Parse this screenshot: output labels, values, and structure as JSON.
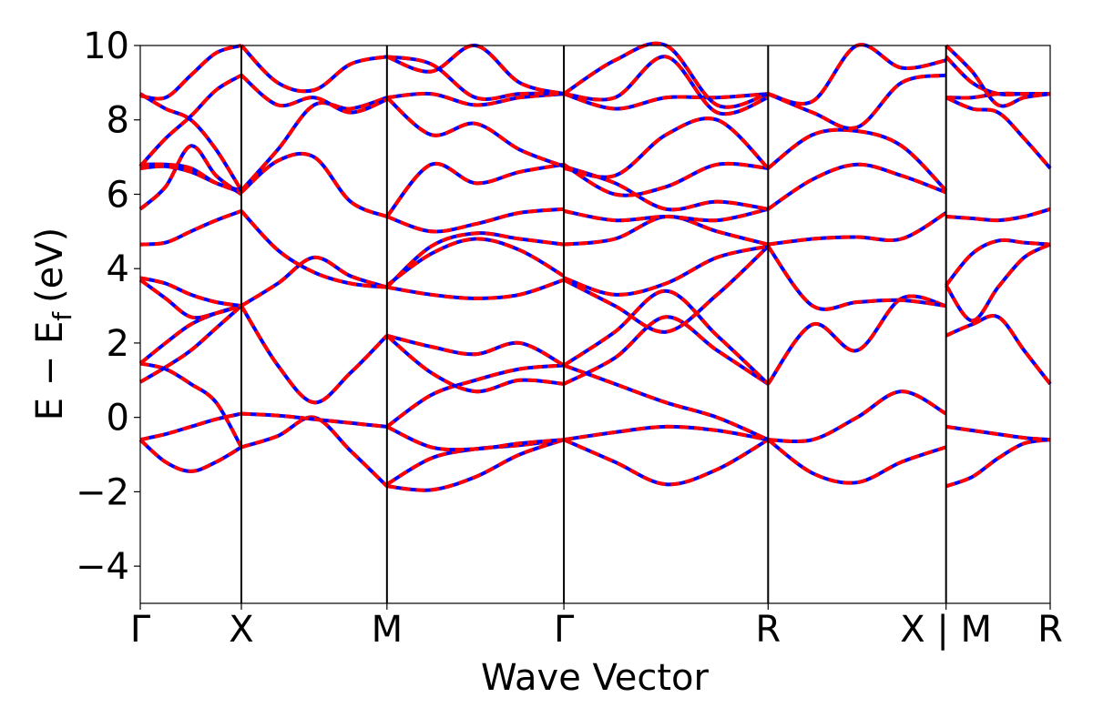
{
  "chart_data": {
    "type": "line",
    "xlabel": "Wave Vector",
    "ylabel_main": "E − E",
    "ylabel_sub": "f",
    "ylabel_unit": "(eV)",
    "ylim": [
      -5,
      10
    ],
    "yticks": [
      -4,
      -2,
      0,
      2,
      4,
      6,
      8,
      10
    ],
    "xlim": [
      0,
      9
    ],
    "kpoints": [
      {
        "label": "Γ",
        "x": 0.0
      },
      {
        "label": "X",
        "x": 1.0
      },
      {
        "label": "M",
        "x": 2.44
      },
      {
        "label": "Γ",
        "x": 4.19
      },
      {
        "label": "R",
        "x": 6.21
      },
      {
        "label": "X | M",
        "x": 7.97
      },
      {
        "label": "R",
        "x": 9.0
      }
    ],
    "colors": {
      "line_a": "#0000ff",
      "line_b": "#ff0000",
      "axis": "#000000"
    },
    "series": [
      {
        "segment": "Γ-X",
        "bands": [
          [
            -0.6,
            -1.2,
            -1.45,
            -1.2,
            -0.8
          ],
          [
            -0.6,
            -0.45,
            -0.25,
            -0.05,
            0.1
          ],
          [
            1.45,
            1.3,
            0.9,
            0.4,
            -0.8
          ],
          [
            0.95,
            1.35,
            1.8,
            2.4,
            3.0
          ],
          [
            1.45,
            2.0,
            2.5,
            2.8,
            3.0
          ],
          [
            3.7,
            3.2,
            2.7,
            2.8,
            3.0
          ],
          [
            3.75,
            3.6,
            3.3,
            3.1,
            3.0
          ],
          [
            4.65,
            4.7,
            5.0,
            5.3,
            5.55
          ],
          [
            5.6,
            6.2,
            7.3,
            6.5,
            6.0
          ],
          [
            6.7,
            6.75,
            6.6,
            6.3,
            6.05
          ],
          [
            6.8,
            6.8,
            6.7,
            6.3,
            6.1
          ],
          [
            6.75,
            7.5,
            8.1,
            8.8,
            9.2
          ],
          [
            8.7,
            8.3,
            8.0,
            7.2,
            6.1
          ],
          [
            8.65,
            8.6,
            9.2,
            9.8,
            10.0
          ]
        ]
      },
      {
        "segment": "X-M",
        "bands": [
          [
            -0.8,
            -0.5,
            0.0,
            -0.9,
            -1.85
          ],
          [
            0.1,
            0.05,
            -0.05,
            -0.15,
            -0.25
          ],
          [
            3.0,
            1.4,
            0.4,
            1.2,
            2.2
          ],
          [
            3.0,
            3.6,
            4.3,
            3.8,
            3.5
          ],
          [
            5.55,
            4.5,
            3.9,
            3.6,
            3.5
          ],
          [
            6.05,
            6.9,
            7.0,
            5.8,
            5.4
          ],
          [
            6.1,
            7.2,
            8.4,
            8.3,
            8.6
          ],
          [
            9.2,
            8.4,
            8.6,
            8.2,
            8.55
          ],
          [
            10.0,
            9.0,
            8.8,
            9.5,
            9.7
          ]
        ]
      },
      {
        "segment": "M-Γ",
        "bands": [
          [
            -1.85,
            -1.95,
            -1.6,
            -1.0,
            -0.6
          ],
          [
            -1.8,
            -1.1,
            -0.85,
            -0.75,
            -0.6
          ],
          [
            -0.25,
            -0.8,
            -0.85,
            -0.7,
            -0.6
          ],
          [
            -0.25,
            0.6,
            1.0,
            1.3,
            1.4
          ],
          [
            2.2,
            1.9,
            1.7,
            2.0,
            1.4
          ],
          [
            2.2,
            1.2,
            0.7,
            1.0,
            0.9
          ],
          [
            3.5,
            3.3,
            3.2,
            3.3,
            3.7
          ],
          [
            3.55,
            4.4,
            4.8,
            4.5,
            3.8
          ],
          [
            3.5,
            4.6,
            4.95,
            4.8,
            4.65
          ],
          [
            5.4,
            5.0,
            5.2,
            5.5,
            5.6
          ],
          [
            5.4,
            6.8,
            6.3,
            6.6,
            6.8
          ],
          [
            8.6,
            7.6,
            7.9,
            7.2,
            6.75
          ],
          [
            8.6,
            8.7,
            8.4,
            8.6,
            8.7
          ],
          [
            9.7,
            9.5,
            8.6,
            8.7,
            8.7
          ],
          [
            9.7,
            9.3,
            10.0,
            9.0,
            8.7
          ]
        ]
      },
      {
        "segment": "Γ-R",
        "bands": [
          [
            -0.6,
            -1.2,
            -1.8,
            -1.4,
            -0.6
          ],
          [
            -0.6,
            -0.4,
            -0.25,
            -0.35,
            -0.6
          ],
          [
            1.4,
            0.9,
            0.4,
            0.0,
            -0.6
          ],
          [
            0.9,
            1.6,
            2.7,
            1.8,
            0.9
          ],
          [
            1.4,
            2.3,
            3.4,
            2.2,
            0.9
          ],
          [
            3.7,
            3.0,
            2.3,
            3.3,
            4.6
          ],
          [
            3.75,
            3.3,
            3.6,
            4.3,
            4.6
          ],
          [
            4.65,
            4.8,
            5.4,
            5.0,
            4.65
          ],
          [
            5.55,
            5.3,
            5.4,
            5.3,
            5.6
          ],
          [
            6.8,
            6.0,
            6.2,
            6.8,
            6.7
          ],
          [
            6.75,
            6.3,
            5.6,
            5.8,
            5.6
          ],
          [
            6.7,
            6.5,
            7.6,
            8.0,
            6.7
          ],
          [
            8.7,
            8.3,
            8.6,
            8.6,
            8.7
          ],
          [
            8.7,
            8.6,
            9.7,
            8.2,
            8.6
          ],
          [
            8.7,
            9.6,
            10.0,
            8.4,
            8.7
          ]
        ]
      },
      {
        "segment": "R-X",
        "bands": [
          [
            -0.6,
            -1.5,
            -1.75,
            -1.2,
            -0.8
          ],
          [
            -0.6,
            -0.6,
            0.0,
            0.7,
            0.1
          ],
          [
            0.9,
            2.5,
            1.8,
            3.2,
            3.0
          ],
          [
            4.6,
            3.0,
            3.1,
            3.15,
            3.0
          ],
          [
            4.65,
            4.8,
            4.85,
            4.8,
            5.5
          ],
          [
            5.6,
            6.4,
            6.8,
            6.5,
            6.05
          ],
          [
            6.7,
            7.6,
            7.7,
            7.3,
            6.1
          ],
          [
            8.7,
            8.2,
            7.8,
            9.0,
            9.2
          ],
          [
            8.7,
            8.5,
            10.0,
            9.4,
            9.6
          ]
        ]
      },
      {
        "segment": "M-R",
        "bands": [
          [
            -1.85,
            -1.6,
            -1.1,
            -0.7,
            -0.6
          ],
          [
            -0.25,
            -0.35,
            -0.45,
            -0.55,
            -0.6
          ],
          [
            2.2,
            2.5,
            2.7,
            1.8,
            0.9
          ],
          [
            3.55,
            2.6,
            3.5,
            4.3,
            4.65
          ],
          [
            3.55,
            4.4,
            4.75,
            4.7,
            4.65
          ],
          [
            5.4,
            5.35,
            5.3,
            5.4,
            5.6
          ],
          [
            8.6,
            8.3,
            8.2,
            7.5,
            6.7
          ],
          [
            8.6,
            8.6,
            8.7,
            8.7,
            8.7
          ],
          [
            9.7,
            9.0,
            8.7,
            8.7,
            8.7
          ],
          [
            10.0,
            9.3,
            8.4,
            8.6,
            8.7
          ]
        ]
      }
    ]
  }
}
